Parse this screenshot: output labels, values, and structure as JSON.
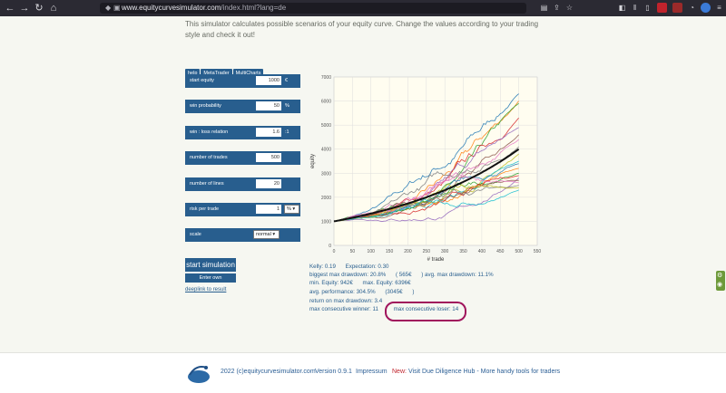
{
  "browser": {
    "url_host": "www.equitycurvesimulator.com",
    "url_path": "/index.html?lang=de"
  },
  "intro_text": "This simulator calculates possible scenarios of your equity curve. Change the values according to your trading style and check it out!",
  "tabs": [
    "help",
    "MetaTrader",
    "MultiCharts"
  ],
  "params": {
    "start_equity": {
      "label": "start equity",
      "value": "1000",
      "unit": "€"
    },
    "win_probability": {
      "label": "win probability",
      "value": "50",
      "unit": "%"
    },
    "win_loss_relation": {
      "label": "win : loss relation",
      "value": "1.6",
      "unit": ":1"
    },
    "number_of_trades": {
      "label": "number of trades",
      "value": "500"
    },
    "number_of_lines": {
      "label": "number of lines",
      "value": "20"
    },
    "risk_per_trade": {
      "label": "risk per trade",
      "value": "1",
      "unit_select": "%"
    },
    "scale": {
      "label": "scale",
      "value": "normal"
    }
  },
  "buttons": {
    "start": "start simulation",
    "trade": "Enter own Tradesrecord",
    "deeplink": "deeplink to result"
  },
  "chart_data": {
    "type": "line",
    "xlabel": "# trade",
    "ylabel": "equity",
    "xlim": [
      0,
      550
    ],
    "ylim": [
      0,
      7000
    ],
    "xticks": [
      0,
      50,
      100,
      150,
      200,
      250,
      300,
      350,
      400,
      450,
      500,
      550
    ],
    "yticks": [
      0,
      1000,
      2000,
      3000,
      4000,
      5000,
      6000,
      7000
    ],
    "grid": true,
    "series_endpoints": [
      6300,
      6000,
      5900,
      5300,
      4900,
      4600,
      4400,
      4100,
      3800,
      3500,
      3400,
      3200,
      3000,
      2900,
      2800,
      2700,
      2600,
      2500,
      2400,
      2300
    ],
    "average_end": 4000,
    "colors": [
      "#1f77b4",
      "#ff7f0e",
      "#2ca02c",
      "#d62728",
      "#9467bd",
      "#8c564b",
      "#e377c2",
      "#7f7f7f",
      "#bcbd22",
      "#17becf"
    ]
  },
  "stats": {
    "kelly": "Kelly: 0.19",
    "expectation": "Expectation: 0.30",
    "max_drawdown": "biggest max drawdown: 20.8%",
    "max_drawdown_abs": "( 565€",
    "avg_drawdown": ") avg. max drawdown: 11.1%",
    "min_equity": "min. Equity: 942€",
    "max_equity": "max. Equity: 6396€",
    "avg_performance": "avg. performance: 304.5%",
    "avg_performance_abs": "(3045€",
    "avg_performance_close": ")",
    "return_on_dd": "return on max drawdown: 3.4",
    "consec_winner": "max consecutive winner: 11",
    "consec_loser": "max consecutive loser: 14"
  },
  "footer": {
    "copyright": "2022 (c)equitycurvesimulator.com",
    "version": "Version 0.9.1",
    "impressum": "Impressum",
    "new_label": "New:",
    "new_text": "Visit Due Diligence Hub - More handy tools for traders"
  }
}
